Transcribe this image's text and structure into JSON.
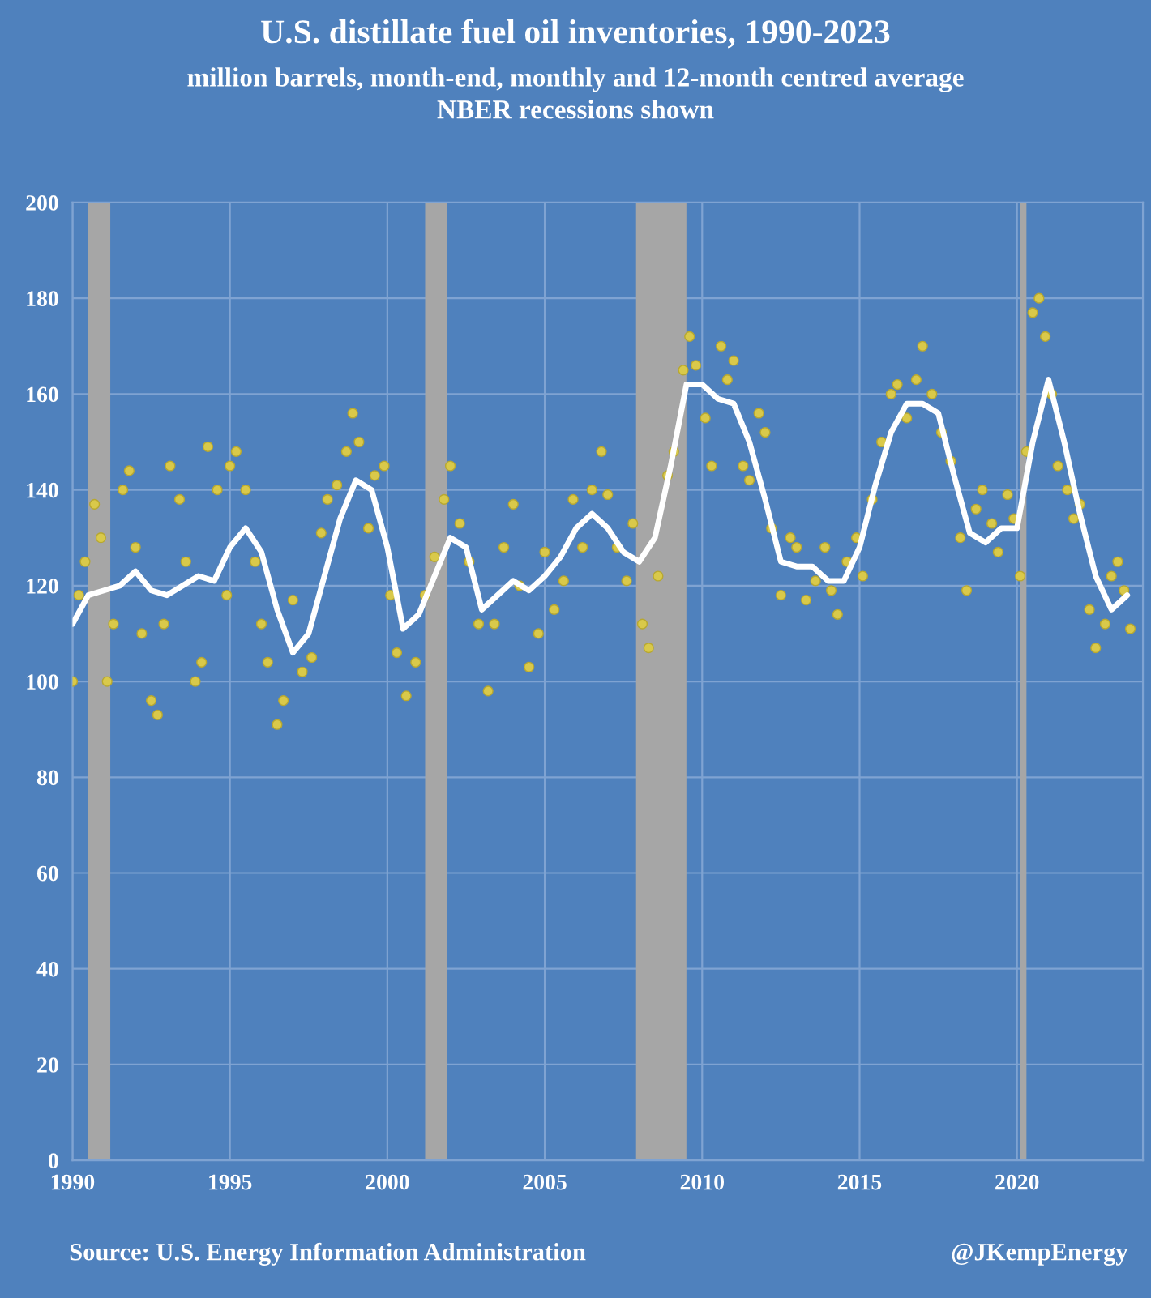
{
  "chart_data": {
    "type": "scatter",
    "title": "U.S. distillate fuel oil inventories, 1990-2023",
    "subtitle": "million barrels, month-end, monthly and 12-month centred average\nNBER recessions shown",
    "annotations": [
      "Source: U.S. Energy Information Administration",
      "@JKempEnergy"
    ],
    "xlim": [
      1990,
      2024
    ],
    "xticks": [
      1990,
      1995,
      2000,
      2005,
      2010,
      2015,
      2020
    ],
    "ylim": [
      0,
      200
    ],
    "yticks": [
      0,
      20,
      40,
      60,
      80,
      100,
      120,
      140,
      160,
      180,
      200
    ],
    "grid": true,
    "legend": false,
    "bands": [
      {
        "axis": "x",
        "from": 1990.5,
        "to": 1991.2,
        "color": "#a6a6a6"
      },
      {
        "axis": "x",
        "from": 2001.2,
        "to": 2001.9,
        "color": "#a6a6a6"
      },
      {
        "axis": "x",
        "from": 2007.9,
        "to": 2009.5,
        "color": "#a6a6a6"
      },
      {
        "axis": "x",
        "from": 2020.1,
        "to": 2020.3,
        "color": "#a6a6a6"
      }
    ],
    "series": [
      {
        "color": "#d9c94a",
        "marker": "circle",
        "x": [
          1990.0,
          1990.2,
          1990.4,
          1990.7,
          1990.9,
          1991.1,
          1991.3,
          1991.6,
          1991.8,
          1992.0,
          1992.2,
          1992.5,
          1992.7,
          1992.9,
          1993.1,
          1993.4,
          1993.6,
          1993.9,
          1994.1,
          1994.3,
          1994.6,
          1994.9,
          1995.0,
          1995.2,
          1995.5,
          1995.8,
          1996.0,
          1996.2,
          1996.5,
          1996.7,
          1997.0,
          1997.3,
          1997.6,
          1997.9,
          1998.1,
          1998.4,
          1998.7,
          1998.9,
          1999.1,
          1999.4,
          1999.6,
          1999.9,
          2000.1,
          2000.3,
          2000.6,
          2000.9,
          2001.2,
          2001.5,
          2001.8,
          2002.0,
          2002.3,
          2002.6,
          2002.9,
          2003.2,
          2003.4,
          2003.7,
          2004.0,
          2004.2,
          2004.5,
          2004.8,
          2005.0,
          2005.3,
          2005.6,
          2005.9,
          2006.2,
          2006.5,
          2006.8,
          2007.0,
          2007.3,
          2007.6,
          2007.8,
          2008.1,
          2008.3,
          2008.6,
          2008.9,
          2009.1,
          2009.4,
          2009.6,
          2009.8,
          2010.1,
          2010.3,
          2010.6,
          2010.8,
          2011.0,
          2011.3,
          2011.5,
          2011.8,
          2012.0,
          2012.2,
          2012.5,
          2012.8,
          2013.0,
          2013.3,
          2013.6,
          2013.9,
          2014.1,
          2014.3,
          2014.6,
          2014.9,
          2015.1,
          2015.4,
          2015.7,
          2016.0,
          2016.2,
          2016.5,
          2016.8,
          2017.0,
          2017.3,
          2017.6,
          2017.9,
          2018.2,
          2018.4,
          2018.7,
          2018.9,
          2019.2,
          2019.4,
          2019.7,
          2019.9,
          2020.1,
          2020.3,
          2020.5,
          2020.7,
          2020.9,
          2021.1,
          2021.3,
          2021.6,
          2021.8,
          2022.0,
          2022.3,
          2022.5,
          2022.8,
          2023.0,
          2023.2,
          2023.4,
          2023.6
        ],
        "values": [
          100,
          118,
          125,
          137,
          130,
          100,
          112,
          140,
          144,
          128,
          110,
          96,
          93,
          112,
          145,
          138,
          125,
          100,
          104,
          149,
          140,
          118,
          145,
          148,
          140,
          125,
          112,
          104,
          91,
          96,
          117,
          102,
          105,
          131,
          138,
          141,
          148,
          156,
          150,
          132,
          143,
          145,
          118,
          106,
          97,
          104,
          118,
          126,
          138,
          145,
          133,
          125,
          112,
          98,
          112,
          128,
          137,
          120,
          103,
          110,
          127,
          115,
          121,
          138,
          128,
          140,
          148,
          139,
          128,
          121,
          133,
          112,
          107,
          122,
          143,
          148,
          165,
          172,
          166,
          155,
          145,
          170,
          163,
          167,
          145,
          142,
          156,
          152,
          132,
          118,
          130,
          128,
          117,
          121,
          128,
          119,
          114,
          125,
          130,
          122,
          138,
          150,
          160,
          162,
          155,
          163,
          170,
          160,
          152,
          146,
          130,
          119,
          136,
          140,
          133,
          127,
          139,
          134,
          122,
          148,
          177,
          180,
          172,
          160,
          145,
          140,
          134,
          137,
          115,
          107,
          112,
          122,
          125,
          119,
          111
        ]
      },
      {
        "type": "line",
        "color": "#ffffff",
        "marker": "none",
        "line_style": "solid",
        "x": [
          1990.0,
          1990.5,
          1991.0,
          1991.5,
          1992.0,
          1992.5,
          1993.0,
          1993.5,
          1994.0,
          1994.5,
          1995.0,
          1995.5,
          1996.0,
          1996.5,
          1997.0,
          1997.5,
          1998.0,
          1998.5,
          1999.0,
          1999.5,
          2000.0,
          2000.5,
          2001.0,
          2001.5,
          2002.0,
          2002.5,
          2003.0,
          2003.5,
          2004.0,
          2004.5,
          2005.0,
          2005.5,
          2006.0,
          2006.5,
          2007.0,
          2007.5,
          2008.0,
          2008.5,
          2009.0,
          2009.5,
          2010.0,
          2010.5,
          2011.0,
          2011.5,
          2012.0,
          2012.5,
          2013.0,
          2013.5,
          2014.0,
          2014.5,
          2015.0,
          2015.5,
          2016.0,
          2016.5,
          2017.0,
          2017.5,
          2018.0,
          2018.5,
          2019.0,
          2019.5,
          2020.0,
          2020.5,
          2021.0,
          2021.5,
          2022.0,
          2022.5,
          2023.0,
          2023.5
        ],
        "values": [
          112,
          118,
          119,
          120,
          123,
          119,
          118,
          120,
          122,
          121,
          128,
          132,
          127,
          115,
          106,
          110,
          122,
          134,
          142,
          140,
          128,
          111,
          114,
          122,
          130,
          128,
          115,
          118,
          121,
          119,
          122,
          126,
          132,
          135,
          132,
          127,
          125,
          130,
          145,
          162,
          162,
          159,
          158,
          150,
          138,
          125,
          124,
          124,
          121,
          121,
          128,
          141,
          152,
          158,
          158,
          156,
          143,
          131,
          129,
          132,
          132,
          150,
          163,
          150,
          135,
          122,
          115,
          118
        ]
      }
    ]
  }
}
